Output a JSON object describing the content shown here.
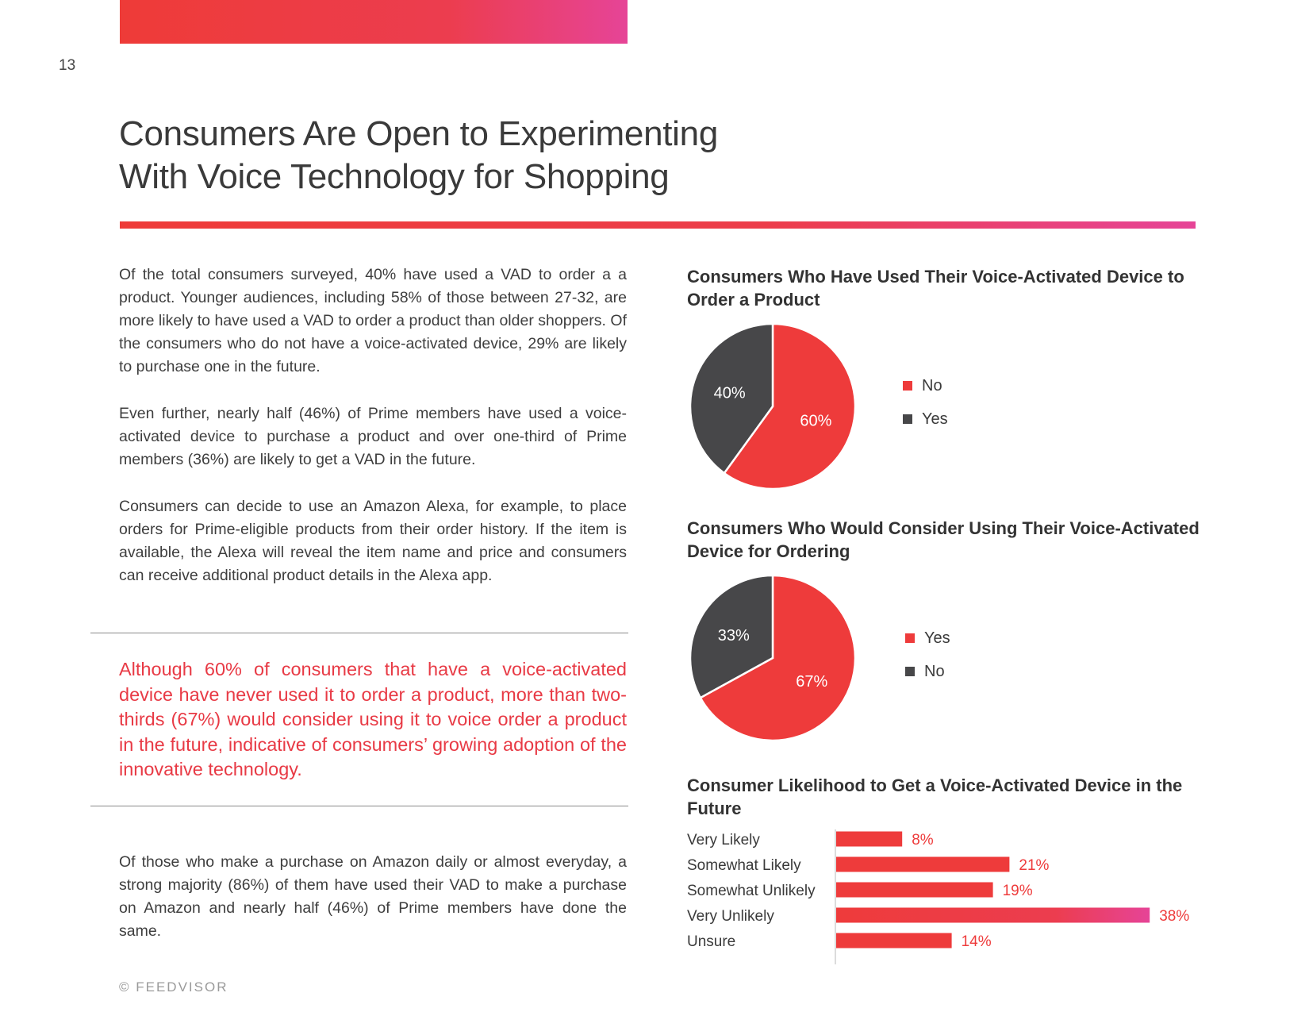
{
  "page": {
    "number": "13",
    "title_line1": "Consumers Are Open to Experimenting",
    "title_line2": "With Voice Technology for Shopping",
    "footer": "© FEEDVISOR"
  },
  "paragraphs": [
    "Of the total consumers surveyed, 40% have used a VAD to order a a product. Younger audiences, including 58% of those between 27-32, are more likely to have used a VAD to order a product than older shoppers. Of the consumers who do not have a voice-activated device, 29% are likely to purchase one in the future.",
    "Even further, nearly half (46%) of Prime members have used a voice-activated device to purchase a product and over one-third of Prime members (36%) are likely to get a VAD in the future.",
    "Consumers can decide to use an Amazon Alexa, for example, to place orders for Prime-eligible products from their order history. If the item is available, the Alexa will reveal the item name and price and consumers can receive additional product details in the Alexa app.",
    "Of those who make a purchase on Amazon daily or almost everyday, a strong majority (86%) of them have used their VAD to make a purchase on Amazon and nearly half (46%) of Prime members have done the same."
  ],
  "callout": "Although 60% of consumers that have a voice-activated device have never used it to order a product, more than two-thirds (67%) would consider using it to voice order a product in the future, indicative of consumers’ growing adoption of the innovative technology.",
  "colors": {
    "red": "#ee3b3b",
    "dark": "#474749",
    "pink": "#e64497",
    "text": "#3a3a3a"
  },
  "chart_data": [
    {
      "type": "pie",
      "title": "Consumers Who Have Used Their Voice-Activated Device to Order a Product",
      "slices": [
        {
          "label": "No",
          "value": 60,
          "display": "60%",
          "color": "#ee3b3b"
        },
        {
          "label": "Yes",
          "value": 40,
          "display": "40%",
          "color": "#474749"
        }
      ],
      "legend": [
        "No",
        "Yes"
      ],
      "legend_position": "right"
    },
    {
      "type": "pie",
      "title": "Consumers Who Would Consider Using Their Voice-Activated Device for Ordering",
      "slices": [
        {
          "label": "Yes",
          "value": 67,
          "display": "67%",
          "color": "#ee3b3b"
        },
        {
          "label": "No",
          "value": 33,
          "display": "33%",
          "color": "#474749"
        }
      ],
      "legend": [
        "Yes",
        "No"
      ],
      "legend_position": "right"
    },
    {
      "type": "bar",
      "orientation": "horizontal",
      "title": "Consumer Likelihood to Get a Voice-Activated Device in the Future",
      "categories": [
        "Very Likely",
        "Somewhat Likely",
        "Somewhat Unlikely",
        "Very Unlikely",
        "Unsure"
      ],
      "values": [
        8,
        21,
        19,
        38,
        14
      ],
      "labels": [
        "8%",
        "21%",
        "19%",
        "38%",
        "14%"
      ],
      "xlim": [
        0,
        40
      ],
      "grid": false
    }
  ]
}
